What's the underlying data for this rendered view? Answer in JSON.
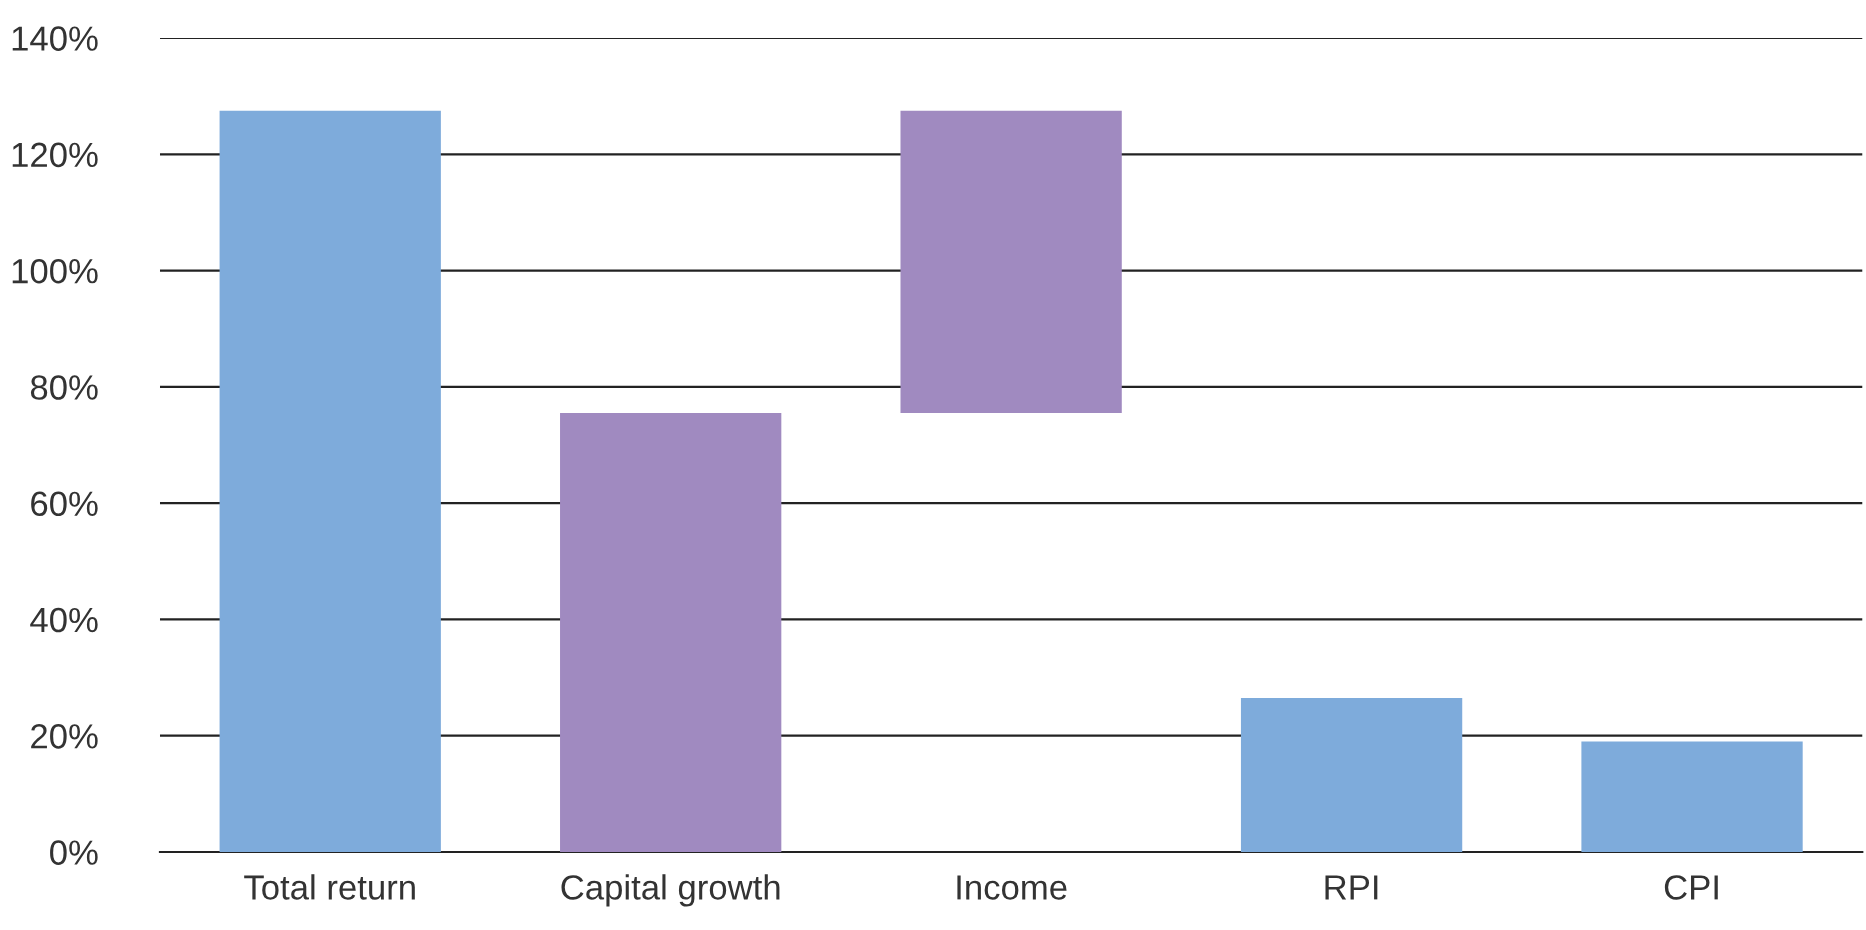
{
  "chart_data": {
    "type": "bar",
    "categories": [
      "Total return",
      "Capital growth",
      "Income",
      "RPI",
      "CPI"
    ],
    "values": [
      127.5,
      75.5,
      52,
      26.5,
      19
    ],
    "base": [
      0,
      0,
      75.5,
      0,
      0
    ],
    "colors": [
      "#7eabdb",
      "#a08ac0",
      "#a08ac0",
      "#7eabdb",
      "#7eabdb"
    ],
    "ylim": [
      0,
      140
    ],
    "yticks": [
      {
        "value": 0,
        "label": "0%"
      },
      {
        "value": 20,
        "label": "20%"
      },
      {
        "value": 40,
        "label": "40%"
      },
      {
        "value": 60,
        "label": "60%"
      },
      {
        "value": 80,
        "label": "80%"
      },
      {
        "value": 100,
        "label": "100%"
      },
      {
        "value": 120,
        "label": "120%"
      },
      {
        "value": 140,
        "label": "140%"
      }
    ],
    "grid": "y"
  }
}
